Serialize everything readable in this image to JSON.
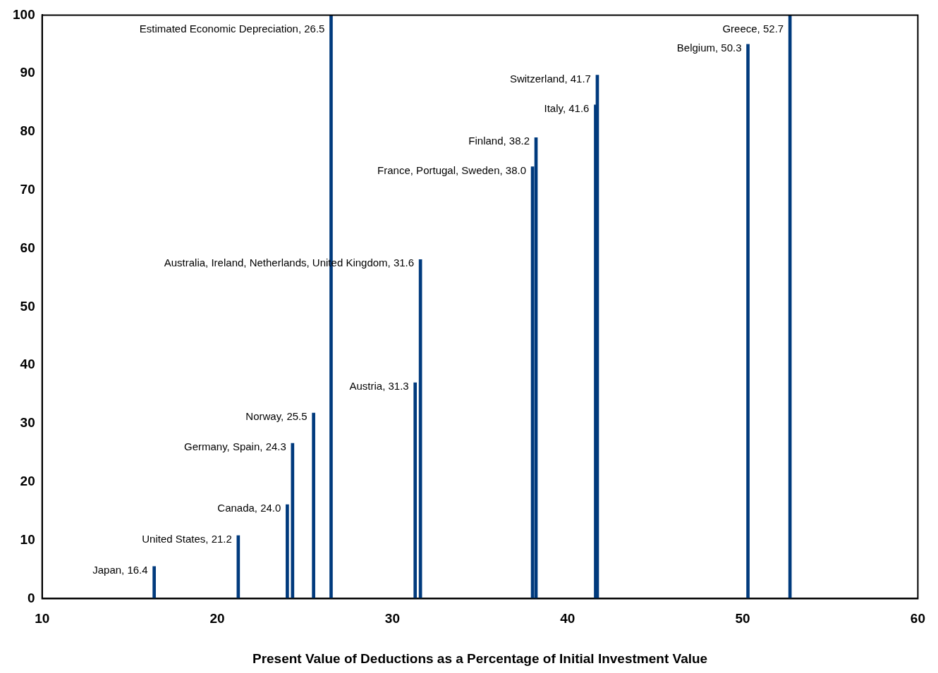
{
  "chart_data": {
    "type": "bar",
    "xlabel": "Present Value of Deductions as a Percentage of Initial Investment Value",
    "x": [
      16.4,
      21.2,
      24.0,
      24.3,
      25.5,
      26.5,
      31.3,
      31.6,
      38.0,
      38.2,
      41.6,
      41.7,
      50.3,
      52.7
    ],
    "values": [
      5.5,
      10.8,
      16.1,
      26.6,
      31.8,
      100,
      37.0,
      58.1,
      74.0,
      79.0,
      84.6,
      89.7,
      95.0,
      100
    ],
    "color": "#003a7d",
    "xlim": [
      10,
      60
    ],
    "xticks": [
      10,
      20,
      30,
      40,
      50,
      60
    ],
    "ylim": [
      0,
      100
    ],
    "yticks": [
      0,
      10,
      20,
      30,
      40,
      50,
      60,
      70,
      80,
      90,
      100
    ],
    "grid": false,
    "annotations": [
      {
        "text": "Japan, 16.4",
        "x": 16.4,
        "y": 5.5
      },
      {
        "text": "United States, 21.2",
        "x": 21.2,
        "y": 10.8
      },
      {
        "text": "Canada, 24.0",
        "x": 24.0,
        "y": 16.1
      },
      {
        "text": "Germany, Spain, 24.3",
        "x": 24.3,
        "y": 26.6
      },
      {
        "text": "Norway, 25.5",
        "x": 25.5,
        "y": 31.8
      },
      {
        "text": "Estimated Economic Depreciation, 26.5",
        "x": 26.5,
        "y": 100
      },
      {
        "text": "Austria, 31.3",
        "x": 31.3,
        "y": 37.0
      },
      {
        "text": "Australia, Ireland, Netherlands, United Kingdom, 31.6",
        "x": 31.6,
        "y": 58.1
      },
      {
        "text": "France, Portugal, Sweden, 38.0",
        "x": 38.0,
        "y": 74.0
      },
      {
        "text": "Finland, 38.2",
        "x": 38.2,
        "y": 79.0
      },
      {
        "text": "Italy, 41.6",
        "x": 41.6,
        "y": 84.6
      },
      {
        "text": "Switzerland, 41.7",
        "x": 41.7,
        "y": 89.7
      },
      {
        "text": "Belgium, 50.3",
        "x": 50.3,
        "y": 95.0
      },
      {
        "text": "Greece, 52.7",
        "x": 52.7,
        "y": 100
      }
    ]
  }
}
